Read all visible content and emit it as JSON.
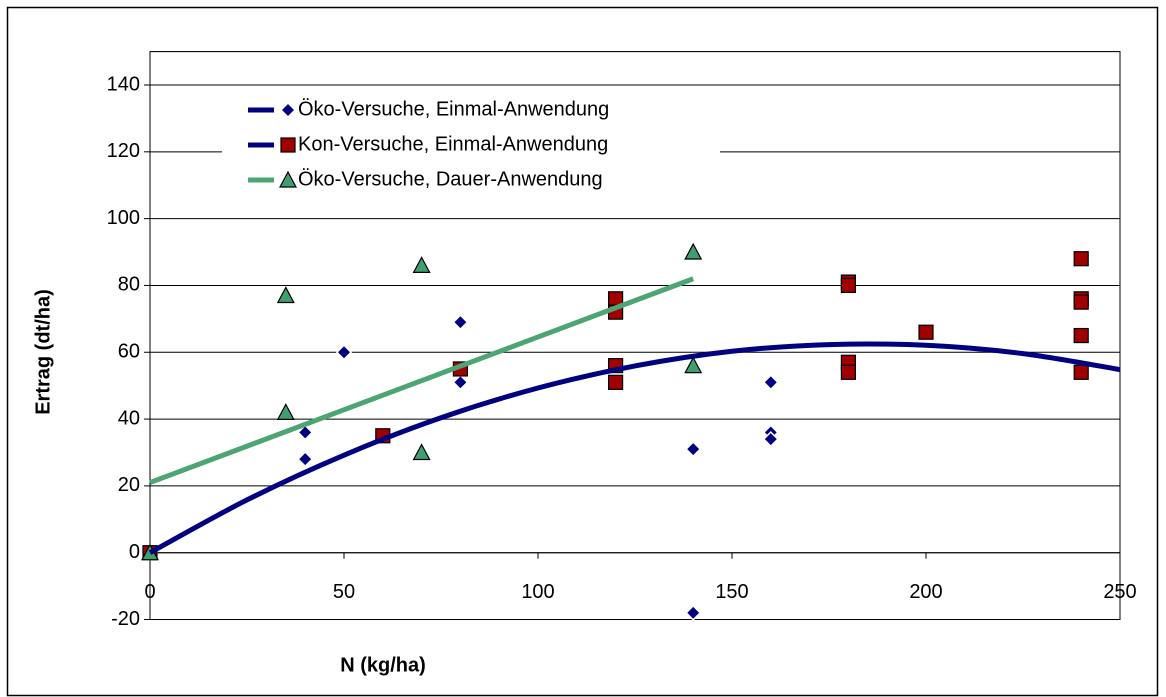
{
  "chart_data": {
    "type": "scatter",
    "xlabel": "N (kg/ha)",
    "ylabel": "Ertrag (dt/ha)",
    "xlim": [
      0,
      250
    ],
    "xticks": [
      0,
      50,
      100,
      150,
      200,
      250
    ],
    "ylim": [
      -20,
      150
    ],
    "yticks": [
      -20,
      0,
      20,
      40,
      60,
      80,
      100,
      120,
      140
    ],
    "grid": true,
    "legend": "upper left",
    "series": [
      {
        "name": "Öko-Versuche, Einmal-Anwendung",
        "color": "#000080",
        "line_color": "#000080",
        "marker": "diamond",
        "x": [
          0,
          40,
          40,
          50,
          80,
          80,
          140,
          140,
          160,
          160,
          160
        ],
        "values": [
          0,
          36,
          28,
          60,
          69,
          51,
          31,
          -18,
          51,
          36,
          34
        ],
        "trendline": {
          "x": [
            0,
            25,
            50,
            75,
            100,
            125,
            150,
            175,
            200,
            225,
            250
          ],
          "values": [
            0,
            15.8,
            29.2,
            40.4,
            49.3,
            55.9,
            60.3,
            62.3,
            62.1,
            59.6,
            54.8
          ]
        }
      },
      {
        "name": "Kon-Versuche, Einmal-Anwendung",
        "color": "#a00000",
        "line_color": "#000080",
        "marker": "square",
        "x": [
          0,
          60,
          80,
          120,
          120,
          120,
          120,
          180,
          180,
          180,
          180,
          200,
          240,
          240,
          240,
          240,
          240
        ],
        "values": [
          0,
          35,
          55,
          76,
          72,
          56,
          51,
          81,
          80,
          57,
          54,
          66,
          88,
          76,
          75,
          65,
          54
        ]
      },
      {
        "name": "Öko-Versuche, Dauer-Anwendung",
        "color": "#3f9f6f",
        "line_color": "#4da573",
        "marker": "triangle",
        "x": [
          0,
          35,
          35,
          70,
          70,
          140,
          140
        ],
        "values": [
          0,
          77,
          42,
          86,
          30,
          90,
          56
        ],
        "trendline": {
          "x": [
            0,
            140
          ],
          "values": [
            21,
            82
          ]
        }
      }
    ]
  }
}
